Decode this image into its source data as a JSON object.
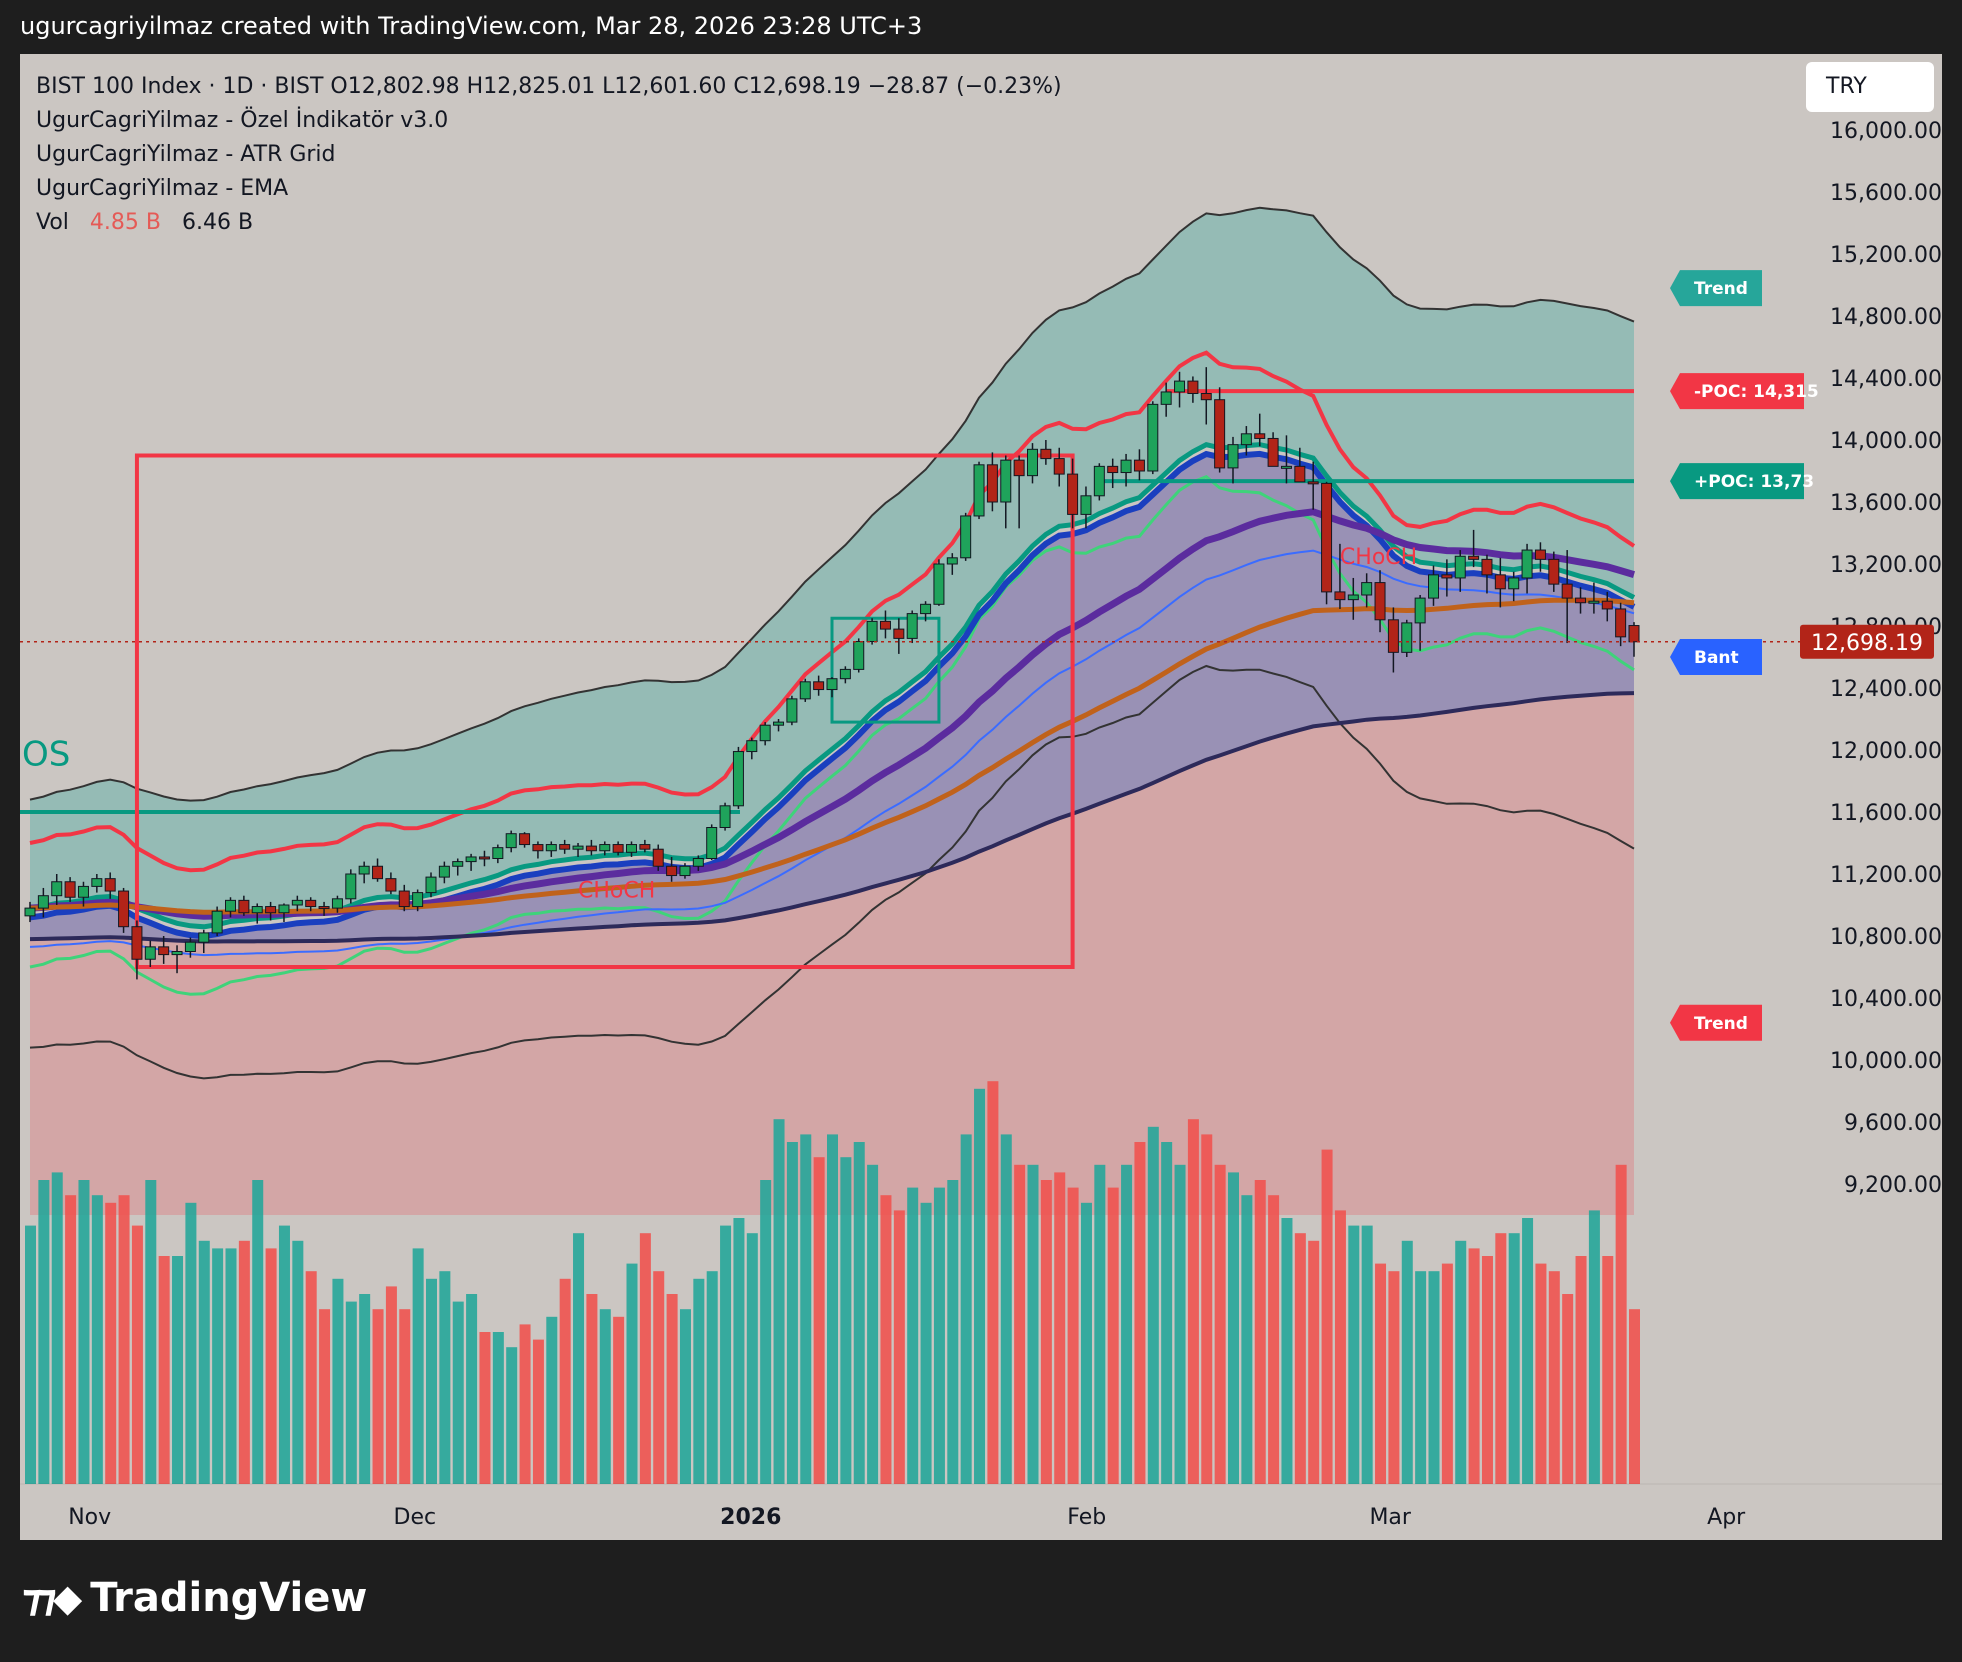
{
  "header": {
    "attribution": "ugurcagriyilmaz created with TradingView.com, Mar 28, 2026 23:28 UTC+3"
  },
  "legend": {
    "symbol_line": "BIST 100 Index · 1D · BIST  O12,802.98  H12,825.01  L12,601.60  C12,698.19  −28.87 (−0.23%)",
    "indicator_1": "UgurCagriYilmaz - Özel İndikatör v3.0",
    "indicator_2": "UgurCagriYilmaz - ATR Grid",
    "indicator_3": "UgurCagriYilmaz - EMA",
    "vol_label": "Vol",
    "vol_a": "4.85 B",
    "vol_b": "6.46 B"
  },
  "currency": "TRY",
  "brand": {
    "name": "TradingView",
    "logo_icon": "tradingview-logo-icon"
  },
  "colors": {
    "up": "#26a69a",
    "down": "#ef5350",
    "last_price": "#b22418",
    "trend_teal": "#26a69a",
    "trend_red": "#f23645",
    "bant_blue": "#2962ff"
  },
  "chart_data": {
    "type": "candlestick",
    "symbol": "BIST 100 Index",
    "interval": "1D",
    "ylim": [
      8900,
      16500
    ],
    "y_ticks": [
      {
        "value": 16000,
        "label": "16,000.00"
      },
      {
        "value": 15600,
        "label": "15,600.00"
      },
      {
        "value": 15200,
        "label": "15,200.00"
      },
      {
        "value": 14800,
        "label": "14,800.00"
      },
      {
        "value": 14400,
        "label": "14,400.00"
      },
      {
        "value": 14000,
        "label": "14,000.00"
      },
      {
        "value": 13600,
        "label": "13,600.00"
      },
      {
        "value": 13200,
        "label": "13,200.00"
      },
      {
        "value": 12800,
        "label": "12,800.00"
      },
      {
        "value": 12400,
        "label": "12,400.00"
      },
      {
        "value": 12000,
        "label": "12,000.00"
      },
      {
        "value": 11600,
        "label": "11,600.00"
      },
      {
        "value": 11200,
        "label": "11,200.00"
      },
      {
        "value": 10800,
        "label": "10,800.00"
      },
      {
        "value": 10400,
        "label": "10,400.00"
      },
      {
        "value": 10000,
        "label": "10,000.00"
      },
      {
        "value": 9600,
        "label": "9,600.00"
      },
      {
        "value": 9200,
        "label": "9,200.00"
      }
    ],
    "x_labels": [
      {
        "label": "Nov",
        "date": "2025-11-01",
        "bold": false
      },
      {
        "label": "Dec",
        "date": "2025-12-01",
        "bold": false
      },
      {
        "label": "2026",
        "date": "2026-01-01",
        "bold": true
      },
      {
        "label": "Feb",
        "date": "2026-02-01",
        "bold": false
      },
      {
        "label": "Mar",
        "date": "2026-03-01",
        "bold": false
      },
      {
        "label": "Apr",
        "date": "2026-04-01",
        "bold": false
      }
    ],
    "last_price": {
      "value": 12698.19,
      "label": "12,698.19"
    },
    "tags": [
      {
        "label": "Trend",
        "value": 14980,
        "color": "#26a69a"
      },
      {
        "label": "-POC: 14,315",
        "value": 14315,
        "color": "#f23645"
      },
      {
        "label": "+POC: 13,73",
        "value": 13735,
        "color": "#089981"
      },
      {
        "label": "Bant",
        "value": 12600,
        "color": "#2962ff"
      },
      {
        "label": "Trend",
        "value": 10240,
        "color": "#f23645"
      }
    ],
    "annotations": [
      {
        "text": "OS",
        "color": "#089981"
      },
      {
        "text": "CHoCH",
        "color": "#f23645"
      },
      {
        "text": "CHoCH",
        "color": "#f23645"
      }
    ],
    "candles_ohlc": [
      [
        10930,
        11020,
        10890,
        10980
      ],
      [
        10980,
        11110,
        10920,
        11060
      ],
      [
        11060,
        11200,
        11000,
        11150
      ],
      [
        11150,
        11180,
        11020,
        11050
      ],
      [
        11050,
        11150,
        10990,
        11120
      ],
      [
        11120,
        11200,
        11080,
        11170
      ],
      [
        11170,
        11210,
        11040,
        11090
      ],
      [
        11090,
        11110,
        10820,
        10860
      ],
      [
        10860,
        10900,
        10520,
        10650
      ],
      [
        10650,
        10770,
        10600,
        10730
      ],
      [
        10730,
        10800,
        10620,
        10680
      ],
      [
        10680,
        10740,
        10560,
        10700
      ],
      [
        10700,
        10790,
        10660,
        10760
      ],
      [
        10760,
        10840,
        10690,
        10820
      ],
      [
        10820,
        10990,
        10800,
        10960
      ],
      [
        10960,
        11050,
        10920,
        11030
      ],
      [
        11030,
        11060,
        10930,
        10950
      ],
      [
        10950,
        11010,
        10880,
        10990
      ],
      [
        10990,
        11020,
        10900,
        10950
      ],
      [
        10950,
        11010,
        10890,
        11000
      ],
      [
        11000,
        11060,
        10960,
        11030
      ],
      [
        11030,
        11050,
        10960,
        10990
      ],
      [
        10990,
        11020,
        10930,
        10980
      ],
      [
        10980,
        11060,
        10950,
        11040
      ],
      [
        11040,
        11230,
        11010,
        11200
      ],
      [
        11200,
        11280,
        11140,
        11250
      ],
      [
        11250,
        11300,
        11150,
        11170
      ],
      [
        11170,
        11210,
        11070,
        11090
      ],
      [
        11090,
        11130,
        10960,
        10990
      ],
      [
        10990,
        11100,
        10960,
        11080
      ],
      [
        11080,
        11210,
        11050,
        11180
      ],
      [
        11180,
        11280,
        11140,
        11250
      ],
      [
        11250,
        11300,
        11190,
        11280
      ],
      [
        11280,
        11330,
        11220,
        11310
      ],
      [
        11310,
        11350,
        11250,
        11300
      ],
      [
        11300,
        11390,
        11270,
        11370
      ],
      [
        11370,
        11480,
        11340,
        11460
      ],
      [
        11460,
        11470,
        11370,
        11390
      ],
      [
        11390,
        11410,
        11300,
        11350
      ],
      [
        11350,
        11410,
        11310,
        11390
      ],
      [
        11390,
        11420,
        11330,
        11360
      ],
      [
        11360,
        11400,
        11310,
        11380
      ],
      [
        11380,
        11420,
        11320,
        11350
      ],
      [
        11350,
        11410,
        11320,
        11390
      ],
      [
        11390,
        11410,
        11320,
        11340
      ],
      [
        11340,
        11410,
        11310,
        11390
      ],
      [
        11390,
        11420,
        11340,
        11360
      ],
      [
        11360,
        11390,
        11220,
        11250
      ],
      [
        11250,
        11310,
        11150,
        11190
      ],
      [
        11190,
        11270,
        11170,
        11250
      ],
      [
        11250,
        11320,
        11220,
        11300
      ],
      [
        11300,
        11520,
        11290,
        11500
      ],
      [
        11500,
        11660,
        11480,
        11640
      ],
      [
        11640,
        12020,
        11620,
        11990
      ],
      [
        11990,
        12080,
        11940,
        12060
      ],
      [
        12060,
        12180,
        12030,
        12160
      ],
      [
        12160,
        12200,
        12120,
        12180
      ],
      [
        12180,
        12350,
        12160,
        12330
      ],
      [
        12330,
        12460,
        12310,
        12440
      ],
      [
        12440,
        12480,
        12350,
        12390
      ],
      [
        12390,
        12470,
        12340,
        12460
      ],
      [
        12460,
        12540,
        12430,
        12520
      ],
      [
        12520,
        12720,
        12500,
        12700
      ],
      [
        12700,
        12850,
        12680,
        12830
      ],
      [
        12830,
        12900,
        12720,
        12780
      ],
      [
        12780,
        12850,
        12620,
        12720
      ],
      [
        12720,
        12900,
        12690,
        12880
      ],
      [
        12880,
        12960,
        12830,
        12940
      ],
      [
        12940,
        13230,
        12930,
        13200
      ],
      [
        13200,
        13270,
        13130,
        13240
      ],
      [
        13240,
        13530,
        13220,
        13510
      ],
      [
        13510,
        13860,
        13490,
        13840
      ],
      [
        13840,
        13920,
        13540,
        13600
      ],
      [
        13600,
        13900,
        13430,
        13870
      ],
      [
        13870,
        13900,
        13430,
        13770
      ],
      [
        13770,
        13980,
        13720,
        13940
      ],
      [
        13940,
        14000,
        13840,
        13880
      ],
      [
        13880,
        13950,
        13700,
        13780
      ],
      [
        13780,
        13880,
        13430,
        13520
      ],
      [
        13520,
        13700,
        13430,
        13640
      ],
      [
        13640,
        13850,
        13610,
        13830
      ],
      [
        13830,
        13880,
        13690,
        13790
      ],
      [
        13790,
        13910,
        13700,
        13870
      ],
      [
        13870,
        13940,
        13740,
        13800
      ],
      [
        13800,
        14250,
        13780,
        14230
      ],
      [
        14230,
        14370,
        14150,
        14310
      ],
      [
        14310,
        14440,
        14210,
        14380
      ],
      [
        14380,
        14410,
        14240,
        14300
      ],
      [
        14300,
        14470,
        14100,
        14260
      ],
      [
        14260,
        14340,
        13790,
        13820
      ],
      [
        13820,
        14020,
        13720,
        13970
      ],
      [
        13970,
        14090,
        13900,
        14040
      ],
      [
        14040,
        14170,
        13960,
        14010
      ],
      [
        14010,
        14050,
        13850,
        13830
      ],
      [
        13830,
        14030,
        13720,
        13830
      ],
      [
        13830,
        13950,
        13750,
        13730
      ],
      [
        13730,
        13860,
        13550,
        13720
      ],
      [
        13720,
        13730,
        12940,
        13020
      ],
      [
        13020,
        13330,
        12910,
        12970
      ],
      [
        12970,
        13110,
        12840,
        13000
      ],
      [
        13000,
        13140,
        12920,
        13080
      ],
      [
        13080,
        13160,
        12760,
        12840
      ],
      [
        12840,
        12920,
        12500,
        12630
      ],
      [
        12630,
        12840,
        12600,
        12820
      ],
      [
        12820,
        13000,
        12640,
        12980
      ],
      [
        12980,
        13190,
        12930,
        13130
      ],
      [
        13130,
        13230,
        12990,
        13110
      ],
      [
        13110,
        13290,
        13020,
        13250
      ],
      [
        13250,
        13420,
        13180,
        13230
      ],
      [
        13230,
        13260,
        13010,
        13130
      ],
      [
        13130,
        13240,
        12920,
        13040
      ],
      [
        13040,
        13150,
        12960,
        13110
      ],
      [
        13110,
        13330,
        13010,
        13290
      ],
      [
        13290,
        13340,
        13150,
        13230
      ],
      [
        13230,
        13280,
        13020,
        13070
      ],
      [
        13070,
        13290,
        12690,
        12980
      ],
      [
        12980,
        13050,
        12880,
        12950
      ],
      [
        12950,
        13080,
        12880,
        12960
      ],
      [
        12960,
        13020,
        12830,
        12910
      ],
      [
        12910,
        12950,
        12670,
        12730
      ],
      [
        12802.98,
        12825.01,
        12601.6,
        12698.19
      ]
    ],
    "volume_bars": [
      {
        "ratio": [
          0.68,
          0.8,
          0.82,
          0.76,
          0.8,
          0.76,
          0.74,
          0.76,
          0.68,
          0.8,
          0.6,
          0.6,
          0.74,
          0.64,
          0.62,
          0.62,
          0.64,
          0.8,
          0.62,
          0.68,
          0.64,
          0.56,
          0.46,
          0.54,
          0.48,
          0.5,
          0.46,
          0.52,
          0.46,
          0.62,
          0.54,
          0.56,
          0.48,
          0.5,
          0.4,
          0.4,
          0.36,
          0.42,
          0.38,
          0.44,
          0.54,
          0.66,
          0.5,
          0.46,
          0.44,
          0.58,
          0.66,
          0.56,
          0.5,
          0.46,
          0.54,
          0.56,
          0.68,
          0.7,
          0.66,
          0.8,
          0.96,
          0.9,
          0.92,
          0.86,
          0.92,
          0.86,
          0.9,
          0.84,
          0.76,
          0.72,
          0.78,
          0.74,
          0.78,
          0.8,
          0.92,
          1.04,
          1.06,
          0.92,
          0.84,
          0.84,
          0.8,
          0.82,
          0.78,
          0.74,
          0.84,
          0.78,
          0.84,
          0.9,
          0.94,
          0.9,
          0.84,
          0.96,
          0.92,
          0.84,
          0.82,
          0.76,
          0.8,
          0.76,
          0.7,
          0.66,
          0.64,
          0.88,
          0.72,
          0.68,
          0.68,
          0.58,
          0.56,
          0.64,
          0.56,
          0.56,
          0.58,
          0.64,
          0.62,
          0.6,
          0.66,
          0.66,
          0.7,
          0.58,
          0.56,
          0.5,
          0.6,
          0.72,
          0.6,
          0.84,
          0.46
        ],
        "note": "volume relative to the largest bar; colored by candle direction"
      }
    ]
  }
}
